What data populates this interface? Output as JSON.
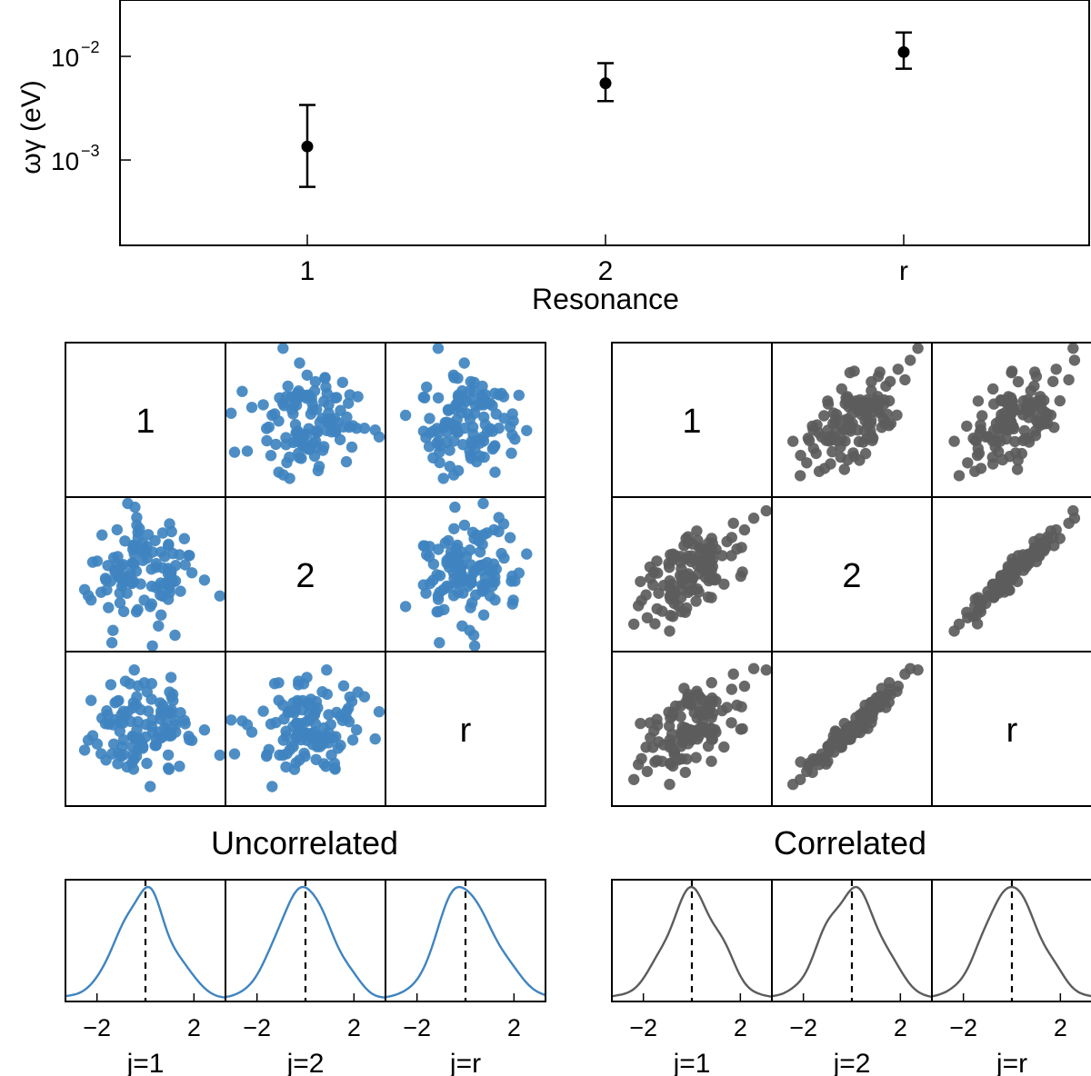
{
  "colors": {
    "uncorrelated": "#3f84c0",
    "correlated": "#5c5c5c",
    "axis": "#000000"
  },
  "chart_data": [
    {
      "type": "scatter",
      "name": "resonance-strengths",
      "xlabel": "Resonance",
      "ylabel": "ωγ (eV)",
      "yscale": "log",
      "ylim": [
        0.00015,
        0.035
      ],
      "categories": [
        "1",
        "2",
        "r"
      ],
      "values": [
        0.00135,
        0.0055,
        0.011
      ],
      "error_low": [
        0.00055,
        0.0037,
        0.0076
      ],
      "error_high": [
        0.0034,
        0.0086,
        0.017
      ],
      "yticks": [
        {
          "value": 0.001,
          "base": "10",
          "exp": "−3"
        },
        {
          "value": 0.01,
          "base": "10",
          "exp": "−2"
        }
      ]
    },
    {
      "type": "scatter-matrix",
      "name": "uncorrelated",
      "title": "Uncorrelated",
      "labels": [
        "1",
        "2",
        "r"
      ],
      "correlation": [
        [
          1,
          0,
          0
        ],
        [
          0,
          1,
          0
        ],
        [
          0,
          0,
          1
        ]
      ],
      "samples": 120,
      "density": {
        "type": "line",
        "xlim": [
          -3.3,
          3.3
        ],
        "xticks": [
          {
            "value": -2,
            "label": "−2"
          },
          {
            "value": 2,
            "label": "2"
          }
        ],
        "xlabels": [
          "j=1",
          "j=2",
          "j=r"
        ],
        "marker": 0
      }
    },
    {
      "type": "scatter-matrix",
      "name": "correlated",
      "title": "Correlated",
      "labels": [
        "1",
        "2",
        "r"
      ],
      "correlation": [
        [
          1,
          0.6,
          0.6
        ],
        [
          0.6,
          1,
          0.97
        ],
        [
          0.6,
          0.97,
          1
        ]
      ],
      "samples": 120,
      "density": {
        "type": "line",
        "xlim": [
          -3.3,
          3.3
        ],
        "xticks": [
          {
            "value": -2,
            "label": "−2"
          },
          {
            "value": 2,
            "label": "2"
          }
        ],
        "xlabels": [
          "j=1",
          "j=2",
          "j=r"
        ],
        "marker": 0
      }
    }
  ]
}
